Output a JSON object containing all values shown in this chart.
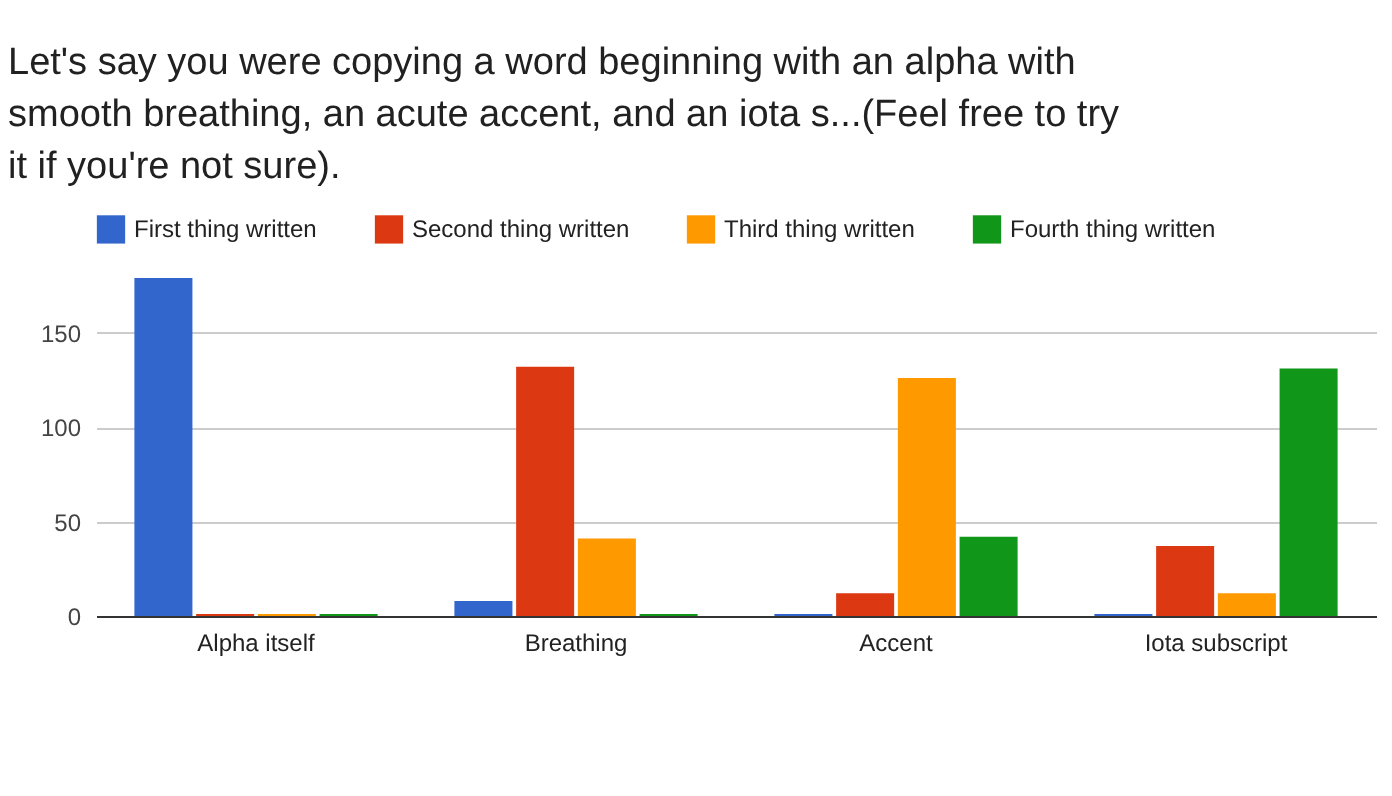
{
  "chart_data": {
    "type": "bar",
    "title": "Let's say you were copying a word beginning with an alpha with smooth breathing, an acute accent, and an iota s...(Feel free to try it if you're not sure).",
    "categories": [
      "Alpha itself",
      "Breathing",
      "Accent",
      "Iota subscript"
    ],
    "series": [
      {
        "name": "First thing written",
        "color": "#3366cc",
        "values": [
          179,
          8,
          1,
          1
        ]
      },
      {
        "name": "Second thing written",
        "color": "#dc3912",
        "values": [
          1,
          132,
          12,
          37
        ]
      },
      {
        "name": "Third thing written",
        "color": "#ff9900",
        "values": [
          1,
          41,
          126,
          12
        ]
      },
      {
        "name": "Fourth thing written",
        "color": "#109618",
        "values": [
          1,
          1,
          42,
          131
        ]
      }
    ],
    "ylim": [
      0,
      180
    ],
    "yticks": [
      0,
      50,
      100,
      150
    ],
    "grid": "y",
    "legend": "top left"
  }
}
